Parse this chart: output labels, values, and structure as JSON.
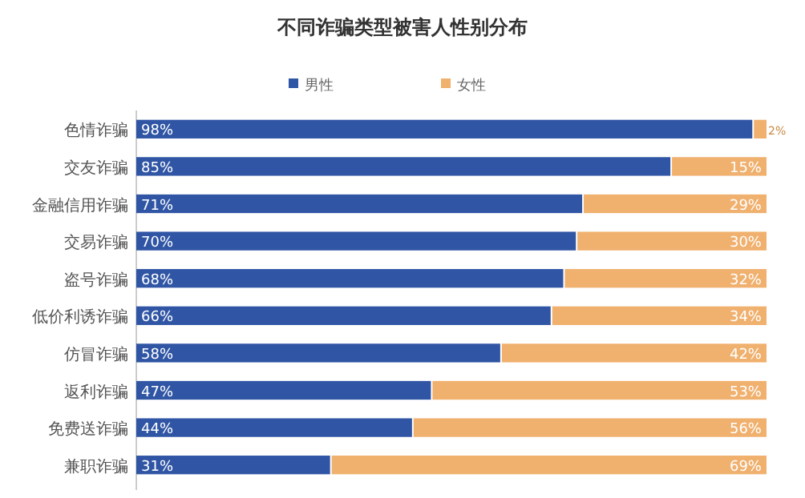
{
  "chart_data": {
    "type": "bar",
    "orientation": "horizontal",
    "stacked": true,
    "title": "不同诈骗类型被害人性别分布",
    "categories": [
      "色情诈骗",
      "交友诈骗",
      "金融信用诈骗",
      "交易诈骗",
      "盗号诈骗",
      "低价利诱诈骗",
      "仿冒诈骗",
      "返利诈骗",
      "免费送诈骗",
      "兼职诈骗"
    ],
    "series": [
      {
        "name": "男性",
        "color": "#2f55a4",
        "values": [
          98,
          85,
          71,
          70,
          68,
          66,
          58,
          47,
          44,
          31
        ],
        "value_labels": [
          "98%",
          "85%",
          "71%",
          "70%",
          "68%",
          "66%",
          "58%",
          "47%",
          "44%",
          "31%"
        ]
      },
      {
        "name": "女性",
        "color": "#f0b06e",
        "values": [
          2,
          15,
          29,
          30,
          32,
          34,
          42,
          53,
          56,
          69
        ],
        "value_labels": [
          "2%",
          "15%",
          "29%",
          "30%",
          "32%",
          "34%",
          "42%",
          "53%",
          "56%",
          "69%"
        ]
      }
    ],
    "tick_labels": "y",
    "legend": "top"
  }
}
